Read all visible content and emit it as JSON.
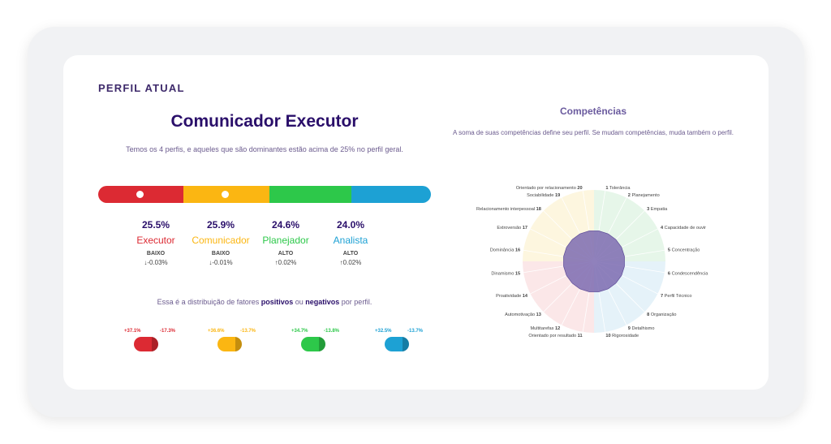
{
  "section_title": "PERFIL ATUAL",
  "profile": {
    "title": "Comunicador Executor",
    "subtitle": "Temos os 4 perfis, e aqueles que são dominantes estão acima de 25% no perfil geral."
  },
  "profiles": [
    {
      "key": "executor",
      "percent": "25.5%",
      "name": "Executor",
      "level": "BAIXO",
      "delta": "↓-0.03%",
      "color": "#dc2a33",
      "share": 25.5,
      "dominant": true
    },
    {
      "key": "comunicador",
      "percent": "25.9%",
      "name": "Comunicador",
      "level": "BAIXO",
      "delta": "↓-0.01%",
      "color": "#fbb612",
      "share": 25.9,
      "dominant": true
    },
    {
      "key": "planejador",
      "percent": "24.6%",
      "name": "Planejador",
      "level": "ALTO",
      "delta": "↑0.02%",
      "color": "#2dc84a",
      "share": 24.6,
      "dominant": false
    },
    {
      "key": "analista",
      "percent": "24.0%",
      "name": "Analista",
      "level": "ALTO",
      "delta": "↑0.02%",
      "color": "#1da1d4",
      "share": 24.0,
      "dominant": false
    }
  ],
  "distribution": {
    "text_before": "Essa é a distribuição de fatores ",
    "positive_word": "positivos",
    "text_middle": " ou ",
    "negative_word": "negativos",
    "text_after": " por perfil."
  },
  "factors": [
    {
      "positive": "+37.1%",
      "negative": "-17.3%",
      "color": "#dc2a33"
    },
    {
      "positive": "+36.6%",
      "negative": "-13.7%",
      "color": "#fbb612"
    },
    {
      "positive": "+34.7%",
      "negative": "-13.8%",
      "color": "#2dc84a"
    },
    {
      "positive": "+32.5%",
      "negative": "-13.7%",
      "color": "#1da1d4"
    }
  ],
  "competencias": {
    "title": "Competências",
    "subtitle": "A soma de suas competências define seu perfil. Se mudam competências, muda também o perfil.",
    "items": [
      {
        "n": "1",
        "label": "Tolerância"
      },
      {
        "n": "2",
        "label": "Planejamento"
      },
      {
        "n": "3",
        "label": "Empatia"
      },
      {
        "n": "4",
        "label": "Capacidade de ouvir"
      },
      {
        "n": "5",
        "label": "Concentração"
      },
      {
        "n": "6",
        "label": "Condescendência"
      },
      {
        "n": "7",
        "label": "Perfil Técnico"
      },
      {
        "n": "8",
        "label": "Organização"
      },
      {
        "n": "9",
        "label": "Detalhismo"
      },
      {
        "n": "10",
        "label": "Rigorosidade"
      },
      {
        "n": "11",
        "label": "Orientado por resultado"
      },
      {
        "n": "12",
        "label": "Multitarefas"
      },
      {
        "n": "13",
        "label": "Automotivação"
      },
      {
        "n": "14",
        "label": "Proatividade"
      },
      {
        "n": "15",
        "label": "Dinamismo"
      },
      {
        "n": "16",
        "label": "Dominância"
      },
      {
        "n": "17",
        "label": "Extroversão"
      },
      {
        "n": "18",
        "label": "Relacionamento interpessoal"
      },
      {
        "n": "19",
        "label": "Sociabilidade"
      },
      {
        "n": "20",
        "label": "Orientado por relacionamento"
      }
    ],
    "quadrant_colors": [
      "#e6f6e9",
      "#e5f2f9",
      "#fbe7e8",
      "#fdf6df"
    ],
    "polygon_fill": "#7d6bb0"
  }
}
